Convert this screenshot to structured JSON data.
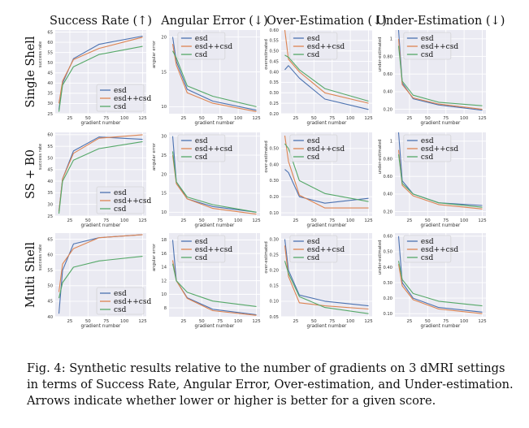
{
  "figure": {
    "column_titles": [
      "Success Rate (↑)",
      "Angular Error (↓)",
      "Over-Estimation (↓)",
      "Under-Estimation (↓)"
    ],
    "row_titles": [
      "Single Shell",
      "SS + B0",
      "Multi Shell"
    ]
  },
  "caption": {
    "label": "Fig. 4:",
    "text": "Synthetic results relative to the number of gradients on 3 dMRI settings in terms of Success Rate, Angular Error, Over-estimation, and Under-estimation. Arrows indicate whether lower or higher is better for a given score."
  },
  "colors": {
    "esd": "#4c72b0",
    "esd++csd": "#dd8452",
    "csd": "#55a868",
    "panel_bg": "#eaeaf2",
    "grid": "#ffffff"
  },
  "chart_data": [
    {
      "type": "line",
      "row": 0,
      "col": 0,
      "xlabel": "gradient number",
      "ylabel": "success rate",
      "xlim": [
        5,
        130
      ],
      "ylim": [
        25,
        66
      ],
      "xticks": [
        25,
        50,
        75,
        100,
        125
      ],
      "yticks": [
        25,
        30,
        35,
        40,
        45,
        50,
        55,
        60,
        65
      ],
      "legend": "bottom-right",
      "grid": true,
      "x": [
        10,
        15,
        30,
        65,
        125
      ],
      "series": [
        {
          "name": "esd",
          "values": [
            27,
            40,
            52,
            59,
            63
          ]
        },
        {
          "name": "esd++csd",
          "values": [
            30,
            41,
            51.5,
            57,
            62.5
          ]
        },
        {
          "name": "csd",
          "values": [
            26,
            39,
            48,
            54,
            58
          ]
        }
      ]
    },
    {
      "type": "line",
      "row": 0,
      "col": 1,
      "xlabel": "gradient number",
      "ylabel": "angular error",
      "xlim": [
        5,
        130
      ],
      "ylim": [
        9,
        21
      ],
      "xticks": [
        25,
        50,
        75,
        100,
        125
      ],
      "yticks": [
        10,
        15,
        20
      ],
      "legend": "top-right",
      "grid": true,
      "x": [
        10,
        15,
        30,
        65,
        125
      ],
      "series": [
        {
          "name": "esd",
          "values": [
            20,
            16.5,
            12.5,
            10.8,
            9.5
          ]
        },
        {
          "name": "esd++csd",
          "values": [
            19,
            16,
            12,
            10.5,
            9.3
          ]
        },
        {
          "name": "csd",
          "values": [
            18,
            17,
            13,
            11.5,
            10
          ]
        }
      ]
    },
    {
      "type": "line",
      "row": 0,
      "col": 2,
      "xlabel": "gradient number",
      "ylabel": "overestimated",
      "xlim": [
        5,
        130
      ],
      "ylim": [
        0.2,
        0.6
      ],
      "xticks": [
        25,
        50,
        75,
        100,
        125
      ],
      "yticks": [
        0.2,
        0.25,
        0.3,
        0.35,
        0.4,
        0.45,
        0.5,
        0.55,
        0.6
      ],
      "legend": "top-right",
      "grid": true,
      "x": [
        10,
        15,
        30,
        65,
        125
      ],
      "series": [
        {
          "name": "esd",
          "values": [
            0.41,
            0.43,
            0.37,
            0.27,
            0.22
          ]
        },
        {
          "name": "esd++csd",
          "values": [
            0.6,
            0.46,
            0.4,
            0.3,
            0.25
          ]
        },
        {
          "name": "csd",
          "values": [
            0.48,
            0.47,
            0.41,
            0.32,
            0.26
          ]
        }
      ]
    },
    {
      "type": "line",
      "row": 0,
      "col": 3,
      "xlabel": "gradient number",
      "ylabel": "under-estimated",
      "xlim": [
        5,
        130
      ],
      "ylim": [
        0.15,
        1.1
      ],
      "xticks": [
        25,
        50,
        75,
        100,
        125
      ],
      "yticks": [
        0.2,
        0.4,
        0.6,
        0.8,
        1.0
      ],
      "legend": "top-right",
      "grid": true,
      "x": [
        10,
        15,
        30,
        65,
        125
      ],
      "series": [
        {
          "name": "esd",
          "values": [
            1.1,
            0.5,
            0.32,
            0.25,
            0.19
          ]
        },
        {
          "name": "esd++csd",
          "values": [
            1.0,
            0.48,
            0.33,
            0.26,
            0.2
          ]
        },
        {
          "name": "csd",
          "values": [
            0.92,
            0.52,
            0.36,
            0.28,
            0.24
          ]
        }
      ]
    },
    {
      "type": "line",
      "row": 1,
      "col": 0,
      "xlabel": "gradient number",
      "ylabel": "success rate",
      "xlim": [
        5,
        130
      ],
      "ylim": [
        25,
        61
      ],
      "xticks": [
        25,
        50,
        75,
        100,
        125
      ],
      "yticks": [
        25,
        30,
        35,
        40,
        45,
        50,
        55,
        60
      ],
      "legend": "bottom-right",
      "grid": true,
      "x": [
        10,
        15,
        30,
        65,
        125
      ],
      "series": [
        {
          "name": "esd",
          "values": [
            27,
            41,
            53,
            59,
            58
          ]
        },
        {
          "name": "esd++csd",
          "values": [
            27,
            41,
            52,
            58.5,
            60
          ]
        },
        {
          "name": "csd",
          "values": [
            26,
            40,
            49,
            54,
            57
          ]
        }
      ]
    },
    {
      "type": "line",
      "row": 1,
      "col": 1,
      "xlabel": "gradient number",
      "ylabel": "angular error",
      "xlim": [
        5,
        130
      ],
      "ylim": [
        9,
        31
      ],
      "xticks": [
        25,
        50,
        75,
        100,
        125
      ],
      "yticks": [
        10,
        15,
        20,
        25,
        30
      ],
      "legend": "top-right",
      "grid": true,
      "x": [
        10,
        15,
        30,
        65,
        125
      ],
      "series": [
        {
          "name": "esd",
          "values": [
            30,
            18,
            13.5,
            11.5,
            10
          ]
        },
        {
          "name": "esd++csd",
          "values": [
            25,
            17.5,
            13.5,
            11,
            9.5
          ]
        },
        {
          "name": "csd",
          "values": [
            26,
            18,
            14,
            12,
            10
          ]
        }
      ]
    },
    {
      "type": "line",
      "row": 1,
      "col": 2,
      "xlabel": "gradient number",
      "ylabel": "over-estimated",
      "xlim": [
        5,
        130
      ],
      "ylim": [
        0.08,
        0.6
      ],
      "xticks": [
        25,
        50,
        75,
        100,
        125
      ],
      "yticks": [
        0.1,
        0.2,
        0.3,
        0.4,
        0.5
      ],
      "legend": "top-right",
      "grid": true,
      "x": [
        10,
        15,
        30,
        65,
        125
      ],
      "series": [
        {
          "name": "esd",
          "values": [
            0.37,
            0.35,
            0.2,
            0.16,
            0.19
          ]
        },
        {
          "name": "esd++csd",
          "values": [
            0.58,
            0.42,
            0.21,
            0.13,
            0.13
          ]
        },
        {
          "name": "csd",
          "values": [
            0.53,
            0.5,
            0.3,
            0.22,
            0.17
          ]
        }
      ]
    },
    {
      "type": "line",
      "row": 1,
      "col": 3,
      "xlabel": "gradient number",
      "ylabel": "under-estimated",
      "xlim": [
        5,
        130
      ],
      "ylim": [
        0.15,
        1.1
      ],
      "xticks": [
        25,
        50,
        75,
        100,
        125
      ],
      "yticks": [
        0.2,
        0.4,
        0.6,
        0.8,
        1.0
      ],
      "legend": "top-right",
      "grid": true,
      "x": [
        10,
        15,
        30,
        65,
        125
      ],
      "series": [
        {
          "name": "esd",
          "values": [
            1.1,
            0.55,
            0.4,
            0.3,
            0.27
          ]
        },
        {
          "name": "esd++csd",
          "values": [
            0.9,
            0.5,
            0.38,
            0.28,
            0.23
          ]
        },
        {
          "name": "csd",
          "values": [
            0.85,
            0.52,
            0.4,
            0.3,
            0.25
          ]
        }
      ]
    },
    {
      "type": "line",
      "row": 2,
      "col": 0,
      "xlabel": "gradient number",
      "ylabel": "success rate",
      "xlim": [
        5,
        130
      ],
      "ylim": [
        40,
        67
      ],
      "xticks": [
        25,
        50,
        75,
        100,
        125
      ],
      "yticks": [
        40,
        45,
        50,
        55,
        60,
        65
      ],
      "legend": "bottom-right",
      "grid": true,
      "x": [
        10,
        15,
        30,
        65,
        125
      ],
      "series": [
        {
          "name": "esd",
          "values": [
            41,
            55,
            63.5,
            65.5,
            66.5
          ]
        },
        {
          "name": "esd++csd",
          "values": [
            48,
            57,
            62,
            65.5,
            66.5
          ]
        },
        {
          "name": "csd",
          "values": [
            46,
            51,
            56,
            58,
            59.5
          ]
        }
      ]
    },
    {
      "type": "line",
      "row": 2,
      "col": 1,
      "xlabel": "gradient number",
      "ylabel": "angular error",
      "xlim": [
        5,
        130
      ],
      "ylim": [
        6.7,
        19
      ],
      "xticks": [
        25,
        50,
        75,
        100,
        125
      ],
      "yticks": [
        8,
        10,
        12,
        14,
        16,
        18
      ],
      "legend": "top-right",
      "grid": true,
      "x": [
        10,
        15,
        30,
        65,
        125
      ],
      "series": [
        {
          "name": "esd",
          "values": [
            18,
            12,
            9.5,
            7.8,
            7
          ]
        },
        {
          "name": "esd++csd",
          "values": [
            15,
            12,
            9.4,
            7.6,
            6.9
          ]
        },
        {
          "name": "csd",
          "values": [
            14.5,
            12,
            10.3,
            9,
            8.2
          ]
        }
      ]
    },
    {
      "type": "line",
      "row": 2,
      "col": 2,
      "xlabel": "gradient number",
      "ylabel": "over-estimated",
      "xlim": [
        5,
        130
      ],
      "ylim": [
        0.05,
        0.32
      ],
      "xticks": [
        25,
        50,
        75,
        100,
        125
      ],
      "yticks": [
        0.05,
        0.1,
        0.15,
        0.2,
        0.25,
        0.3
      ],
      "legend": "top-right",
      "grid": true,
      "x": [
        10,
        15,
        30,
        65,
        125
      ],
      "series": [
        {
          "name": "esd",
          "values": [
            0.3,
            0.2,
            0.12,
            0.1,
            0.085
          ]
        },
        {
          "name": "esd++csd",
          "values": [
            0.28,
            0.18,
            0.095,
            0.085,
            0.075
          ]
        },
        {
          "name": "csd",
          "values": [
            0.23,
            0.19,
            0.115,
            0.08,
            0.06
          ]
        }
      ]
    },
    {
      "type": "line",
      "row": 2,
      "col": 3,
      "xlabel": "gradient number",
      "ylabel": "under-estimated",
      "xlim": [
        5,
        130
      ],
      "ylim": [
        0.08,
        0.62
      ],
      "xticks": [
        25,
        50,
        75,
        100,
        125
      ],
      "yticks": [
        0.1,
        0.2,
        0.3,
        0.4,
        0.5,
        0.6
      ],
      "legend": "top-right",
      "grid": true,
      "x": [
        10,
        15,
        30,
        65,
        125
      ],
      "series": [
        {
          "name": "esd",
          "values": [
            0.6,
            0.3,
            0.2,
            0.14,
            0.11
          ]
        },
        {
          "name": "esd++csd",
          "values": [
            0.42,
            0.28,
            0.19,
            0.13,
            0.1
          ]
        },
        {
          "name": "csd",
          "values": [
            0.44,
            0.32,
            0.23,
            0.18,
            0.15
          ]
        }
      ]
    }
  ]
}
